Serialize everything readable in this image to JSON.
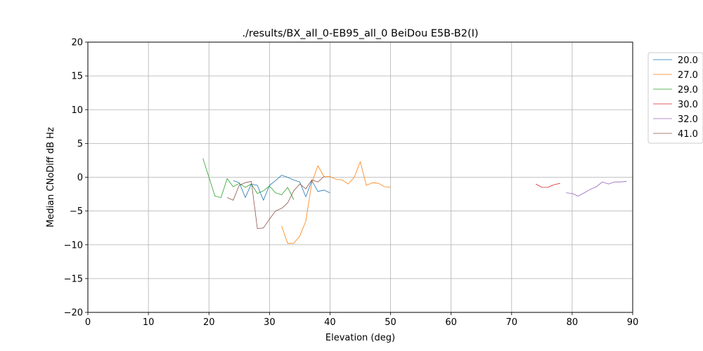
{
  "chart_data": {
    "type": "line",
    "title": "./results/BX_all_0-EB95_all_0 BeiDou E5B-B2(I)",
    "xlabel": "Elevation (deg)",
    "ylabel": "Median CNoDiff dB Hz",
    "xlim": [
      0,
      90
    ],
    "ylim": [
      -20,
      20
    ],
    "xticks": [
      0,
      10,
      20,
      30,
      40,
      50,
      60,
      70,
      80,
      90
    ],
    "yticks": [
      -20,
      -15,
      -10,
      -5,
      0,
      5,
      10,
      15,
      20
    ],
    "xtick_labels": [
      "0",
      "10",
      "20",
      "30",
      "40",
      "50",
      "60",
      "70",
      "80",
      "90"
    ],
    "ytick_labels": [
      "−20",
      "−15",
      "−10",
      "−5",
      "0",
      "5",
      "10",
      "15",
      "20"
    ],
    "grid": true,
    "legend_position": "right, outside plot area, top",
    "series": [
      {
        "name": "20.0",
        "color": "#1f77b4",
        "points": [
          [
            24,
            -0.5
          ],
          [
            25,
            -0.8
          ],
          [
            26,
            -3.0
          ],
          [
            27,
            -1.0
          ],
          [
            28,
            -1.2
          ],
          [
            29,
            -3.4
          ],
          [
            30,
            -1.2
          ],
          [
            31,
            -0.5
          ],
          [
            32,
            0.3
          ],
          [
            33,
            0.0
          ],
          [
            34,
            -0.4
          ],
          [
            35,
            -0.7
          ],
          [
            36,
            -2.9
          ],
          [
            37,
            -0.5
          ],
          [
            38,
            -2.1
          ],
          [
            39,
            -1.9
          ],
          [
            40,
            -2.3
          ]
        ]
      },
      {
        "name": "27.0",
        "color": "#ff7f0e",
        "points": [
          [
            32,
            -7.2
          ],
          [
            33,
            -9.8
          ],
          [
            34,
            -9.8
          ],
          [
            35,
            -8.7
          ],
          [
            36,
            -6.5
          ],
          [
            37,
            -0.8
          ],
          [
            38,
            1.7
          ],
          [
            39,
            0.1
          ],
          [
            40,
            0.1
          ],
          [
            41,
            -0.3
          ],
          [
            42,
            -0.4
          ],
          [
            43,
            -1.0
          ],
          [
            44,
            0.0
          ],
          [
            45,
            2.3
          ],
          [
            46,
            -1.2
          ],
          [
            47,
            -0.8
          ],
          [
            48,
            -0.9
          ],
          [
            49,
            -1.4
          ],
          [
            50,
            -1.5
          ]
        ]
      },
      {
        "name": "29.0",
        "color": "#2ca02c",
        "points": [
          [
            19,
            2.8
          ],
          [
            20,
            0.0
          ],
          [
            21,
            -2.8
          ],
          [
            22,
            -3.0
          ],
          [
            23,
            -0.2
          ],
          [
            24,
            -1.4
          ],
          [
            25,
            -0.9
          ],
          [
            26,
            -1.5
          ],
          [
            27,
            -1.0
          ],
          [
            28,
            -2.4
          ],
          [
            29,
            -2.0
          ],
          [
            30,
            -1.3
          ],
          [
            31,
            -2.3
          ],
          [
            32,
            -2.6
          ],
          [
            33,
            -1.5
          ],
          [
            34,
            -3.3
          ]
        ]
      },
      {
        "name": "30.0",
        "color": "#d62728",
        "points": [
          [
            74,
            -1.0
          ],
          [
            75,
            -1.5
          ],
          [
            76,
            -1.5
          ],
          [
            77,
            -1.1
          ],
          [
            78,
            -0.9
          ]
        ]
      },
      {
        "name": "32.0",
        "color": "#9467bd",
        "points": [
          [
            79,
            -2.3
          ],
          [
            80,
            -2.4
          ],
          [
            81,
            -2.8
          ],
          [
            82,
            -2.3
          ],
          [
            83,
            -1.8
          ],
          [
            84,
            -1.4
          ],
          [
            85,
            -0.7
          ],
          [
            86,
            -1.0
          ],
          [
            87,
            -0.7
          ],
          [
            88,
            -0.7
          ],
          [
            89,
            -0.6
          ]
        ]
      },
      {
        "name": "41.0",
        "color": "#8c564b",
        "points": [
          [
            23,
            -3.0
          ],
          [
            24,
            -3.4
          ],
          [
            25,
            -1.2
          ],
          [
            26,
            -0.8
          ],
          [
            27,
            -0.6
          ],
          [
            28,
            -7.6
          ],
          [
            29,
            -7.5
          ],
          [
            30,
            -6.2
          ],
          [
            31,
            -5.0
          ],
          [
            32,
            -4.6
          ],
          [
            33,
            -3.8
          ],
          [
            34,
            -2.0
          ],
          [
            35,
            -1.0
          ],
          [
            36,
            -1.7
          ],
          [
            37,
            -0.4
          ],
          [
            38,
            -0.7
          ],
          [
            39,
            0.1
          ]
        ]
      }
    ]
  }
}
